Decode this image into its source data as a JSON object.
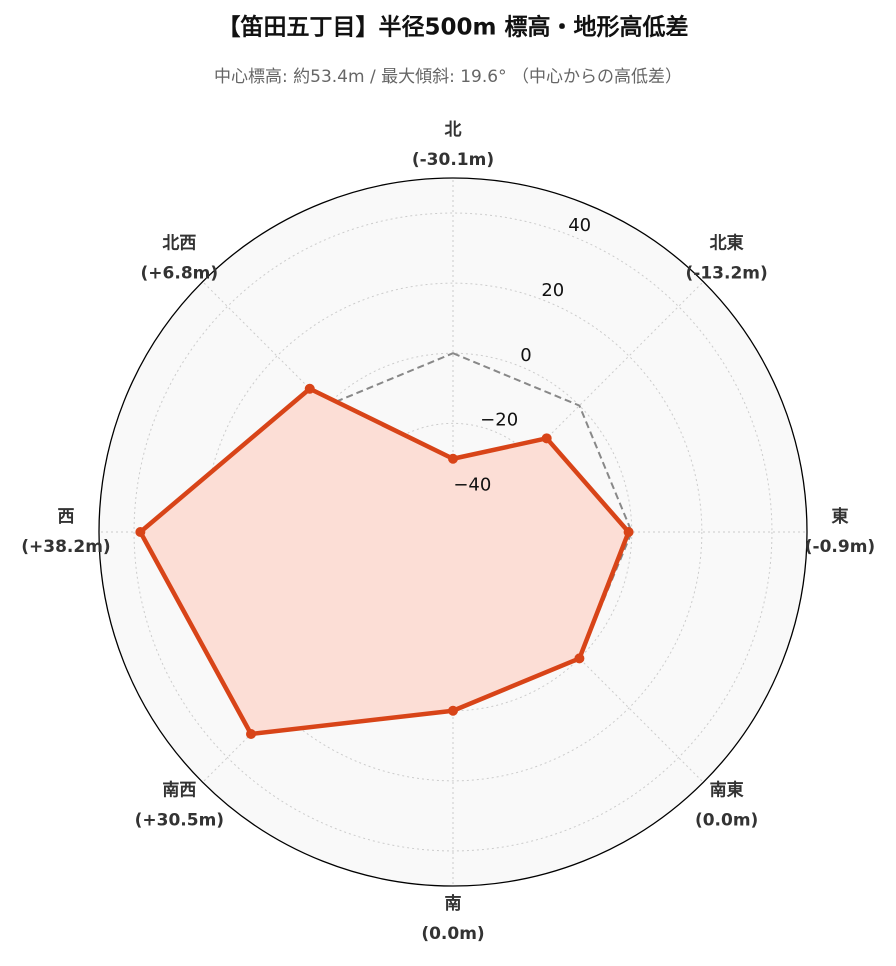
{
  "chart_data": {
    "type": "radar",
    "title": "【笛田五丁目】半径500m 標高・地形高低差",
    "subtitle": "中心標高: 約53.4m / 最大傾斜: 19.6° （中心からの高低差）",
    "categories": [
      "北",
      "北東",
      "東",
      "南東",
      "南",
      "南西",
      "西",
      "北西"
    ],
    "series": [
      {
        "color": "#d84418",
        "fill": "#fcded6",
        "values": [
          -30.1,
          -13.2,
          -0.9,
          0.0,
          0.0,
          30.5,
          38.2,
          6.8
        ],
        "value_labels": [
          "(-30.1m)",
          "(-13.2m)",
          "(-0.9m)",
          "(0.0m)",
          "(0.0m)",
          "(+30.5m)",
          "(+38.2m)",
          "(+6.8m)"
        ]
      }
    ],
    "reference_line": 0,
    "ylim": [
      -51,
      50
    ],
    "yticks": [
      {
        "value": -40,
        "label": "−40"
      },
      {
        "value": -20,
        "label": "−20"
      },
      0,
      20,
      40
    ],
    "grid": true
  }
}
